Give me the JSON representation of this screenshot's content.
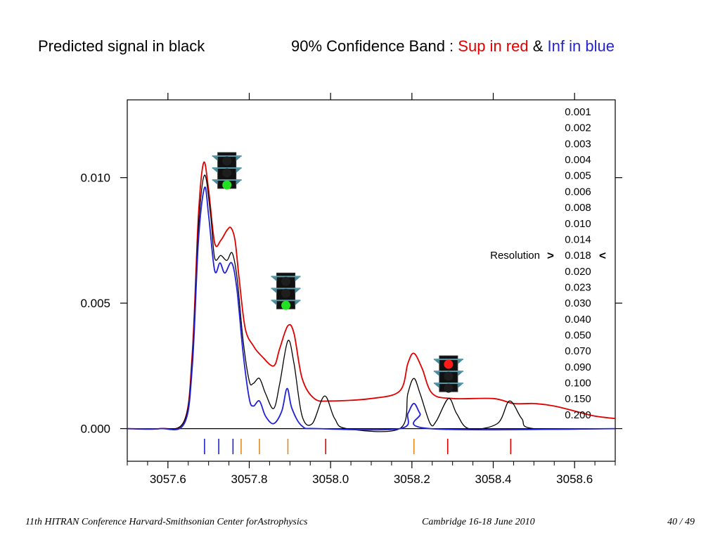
{
  "header": {
    "left": "Predicted signal in black",
    "band_label": "90% Confidence Band  :",
    "sup": "Sup in red",
    "amp": "&",
    "inf": "Inf in blue"
  },
  "footer": {
    "left": "11th HITRAN Conference  Harvard-Smithsonian Center forAstrophysics",
    "middle": "Cambridge 16-18 June 2010",
    "right": "40 / 49"
  },
  "colors": {
    "predicted": "#000000",
    "sup": "#e00000",
    "inf": "#2020d8",
    "orange": "#e08a1e"
  },
  "chart_data": {
    "type": "line",
    "x_ticks": [
      "3057.6",
      "3057.8",
      "3058.0",
      "3058.2",
      "3058.4",
      "3058.6"
    ],
    "x_tick_values": [
      3057.6,
      3057.8,
      3058.0,
      3058.2,
      3058.4,
      3058.6
    ],
    "y_ticks": [
      "0.000",
      "0.005",
      "0.010"
    ],
    "y_tick_values": [
      0.0,
      0.005,
      0.01
    ],
    "xlim": [
      3057.5,
      3058.7
    ],
    "ylim": [
      -0.0013,
      0.0131
    ],
    "grid": false,
    "series": [
      {
        "color": "#e00000",
        "points": [
          [
            3057.5,
            0.0
          ],
          [
            3057.58,
            0.0
          ],
          [
            3057.64,
            0.0003
          ],
          [
            3057.66,
            0.003
          ],
          [
            3057.675,
            0.0085
          ],
          [
            3057.688,
            0.0106
          ],
          [
            3057.7,
            0.0095
          ],
          [
            3057.715,
            0.0074
          ],
          [
            3057.73,
            0.0075
          ],
          [
            3057.745,
            0.0079
          ],
          [
            3057.755,
            0.008
          ],
          [
            3057.765,
            0.0075
          ],
          [
            3057.775,
            0.006
          ],
          [
            3057.79,
            0.004
          ],
          [
            3057.81,
            0.0033
          ],
          [
            3057.83,
            0.0029
          ],
          [
            3057.86,
            0.0025
          ],
          [
            3057.875,
            0.0032
          ],
          [
            3057.895,
            0.0041
          ],
          [
            3057.91,
            0.0038
          ],
          [
            3057.93,
            0.002
          ],
          [
            3057.96,
            0.0012
          ],
          [
            3058.0,
            0.0011
          ],
          [
            3058.1,
            0.0012
          ],
          [
            3058.17,
            0.0015
          ],
          [
            3058.19,
            0.0026
          ],
          [
            3058.205,
            0.003
          ],
          [
            3058.225,
            0.0024
          ],
          [
            3058.25,
            0.0014
          ],
          [
            3058.3,
            0.0012
          ],
          [
            3058.4,
            0.0012
          ],
          [
            3058.45,
            0.001
          ],
          [
            3058.5,
            0.001
          ],
          [
            3058.55,
            0.0009
          ],
          [
            3058.6,
            0.0007
          ],
          [
            3058.65,
            0.0005
          ],
          [
            3058.7,
            0.0004
          ]
        ]
      },
      {
        "color": "#000000",
        "points": [
          [
            3057.5,
            0.0
          ],
          [
            3057.58,
            0.0
          ],
          [
            3057.64,
            0.0003
          ],
          [
            3057.66,
            0.0028
          ],
          [
            3057.675,
            0.008
          ],
          [
            3057.69,
            0.0101
          ],
          [
            3057.705,
            0.0085
          ],
          [
            3057.715,
            0.0068
          ],
          [
            3057.73,
            0.0069
          ],
          [
            3057.745,
            0.0067
          ],
          [
            3057.758,
            0.007
          ],
          [
            3057.77,
            0.006
          ],
          [
            3057.785,
            0.0035
          ],
          [
            3057.8,
            0.0019
          ],
          [
            3057.81,
            0.0018
          ],
          [
            3057.825,
            0.002
          ],
          [
            3057.84,
            0.0014
          ],
          [
            3057.86,
            0.0008
          ],
          [
            3057.875,
            0.0018
          ],
          [
            3057.895,
            0.0035
          ],
          [
            3057.91,
            0.0026
          ],
          [
            3057.93,
            0.0005
          ],
          [
            3057.955,
            0.0002
          ],
          [
            3057.985,
            0.0013
          ],
          [
            3058.01,
            0.0004
          ],
          [
            3058.04,
            0.0
          ],
          [
            3058.17,
            0.0
          ],
          [
            3058.19,
            0.0014
          ],
          [
            3058.205,
            0.002
          ],
          [
            3058.22,
            0.0014
          ],
          [
            3058.245,
            0.0002
          ],
          [
            3058.26,
            0.0003
          ],
          [
            3058.29,
            0.0012
          ],
          [
            3058.31,
            0.0006
          ],
          [
            3058.34,
            0.0
          ],
          [
            3058.41,
            0.0002
          ],
          [
            3058.44,
            0.0011
          ],
          [
            3058.47,
            0.0004
          ],
          [
            3058.5,
            0.0
          ],
          [
            3058.7,
            0.0
          ]
        ]
      },
      {
        "color": "#2020d8",
        "points": [
          [
            3057.5,
            0.0
          ],
          [
            3057.58,
            0.0
          ],
          [
            3057.64,
            0.0002
          ],
          [
            3057.66,
            0.0025
          ],
          [
            3057.675,
            0.0075
          ],
          [
            3057.69,
            0.0096
          ],
          [
            3057.7,
            0.0085
          ],
          [
            3057.715,
            0.0063
          ],
          [
            3057.728,
            0.0066
          ],
          [
            3057.74,
            0.0062
          ],
          [
            3057.757,
            0.0066
          ],
          [
            3057.77,
            0.0055
          ],
          [
            3057.785,
            0.003
          ],
          [
            3057.8,
            0.0012
          ],
          [
            3057.81,
            0.0009
          ],
          [
            3057.825,
            0.0011
          ],
          [
            3057.84,
            0.0005
          ],
          [
            3057.86,
            0.0002
          ],
          [
            3057.88,
            0.0007
          ],
          [
            3057.893,
            0.0016
          ],
          [
            3057.905,
            0.0008
          ],
          [
            3057.93,
            0.0001
          ],
          [
            3057.97,
            0.0
          ],
          [
            3058.17,
            0.0
          ],
          [
            3058.19,
            0.0006
          ],
          [
            3058.205,
            0.001
          ],
          [
            3058.22,
            0.0006
          ],
          [
            3058.245,
            0.0
          ],
          [
            3058.7,
            0.0
          ]
        ]
      }
    ],
    "line_markers": [
      {
        "x": 3057.69,
        "color": "#2020d8"
      },
      {
        "x": 3057.725,
        "color": "#2020d8"
      },
      {
        "x": 3057.76,
        "color": "#2020d8"
      },
      {
        "x": 3057.78,
        "color": "#e08a1e"
      },
      {
        "x": 3057.825,
        "color": "#e08a1e"
      },
      {
        "x": 3057.895,
        "color": "#e08a1e"
      },
      {
        "x": 3057.988,
        "color": "#e00000"
      },
      {
        "x": 3058.205,
        "color": "#e08a1e"
      },
      {
        "x": 3058.288,
        "color": "#e00000"
      },
      {
        "x": 3058.443,
        "color": "#e00000"
      }
    ],
    "traffic_lights": [
      {
        "x": 3057.745,
        "y": 0.011,
        "state": "green"
      },
      {
        "x": 3057.89,
        "y": 0.0062,
        "state": "green"
      },
      {
        "x": 3058.29,
        "y": 0.0029,
        "state": "red"
      }
    ],
    "resolution_label": "Resolution",
    "resolution_values": [
      "0.001",
      "0.002",
      "0.003",
      "0.004",
      "0.005",
      "0.006",
      "0.008",
      "0.010",
      "0.014",
      "0.018",
      "0.020",
      "0.023",
      "0.030",
      "0.040",
      "0.050",
      "0.070",
      "0.090",
      "0.100",
      "0.150",
      "0.200"
    ],
    "resolution_selected": "0.018",
    "selected_left_mark": ">",
    "selected_right_mark": "<"
  }
}
